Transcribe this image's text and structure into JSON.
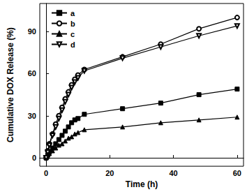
{
  "chart_data": {
    "type": "line",
    "x_label": "Time (h)",
    "y_label": "Cumulative DOX Release (%)",
    "x": [
      0,
      0.5,
      1,
      2,
      3,
      4,
      5,
      6,
      7,
      8,
      9,
      10,
      12,
      24,
      36,
      48,
      60
    ],
    "series": [
      {
        "name": "a",
        "color": "#000000",
        "marker": "square",
        "values": [
          0,
          2,
          4,
          7,
          10,
          13,
          16,
          19,
          22,
          25,
          27,
          28,
          31,
          35,
          39,
          45,
          49
        ]
      },
      {
        "name": "b",
        "color": "#000000",
        "marker": "open-circle",
        "values": [
          0,
          5,
          10,
          17,
          24,
          30,
          36,
          42,
          47,
          52,
          56,
          59,
          63,
          72,
          81,
          92,
          100
        ]
      },
      {
        "name": "c",
        "color": "#000000",
        "marker": "triangle",
        "values": [
          0,
          1,
          3,
          5,
          7,
          9,
          10,
          12,
          14,
          15,
          17,
          18,
          20,
          22,
          25,
          27,
          29
        ]
      },
      {
        "name": "d",
        "color": "#000000",
        "marker": "open-down-triangle",
        "values": [
          0,
          4,
          9,
          16,
          22,
          28,
          34,
          40,
          45,
          50,
          54,
          57,
          62,
          71,
          79,
          87,
          94
        ]
      }
    ],
    "xlim": [
      -2,
      62
    ],
    "xticks": [
      0,
      20,
      40,
      60
    ],
    "ylim": [
      -6,
      110
    ],
    "yticks": [
      0,
      30,
      60,
      90
    ],
    "legend": "upper left",
    "grid": false
  }
}
